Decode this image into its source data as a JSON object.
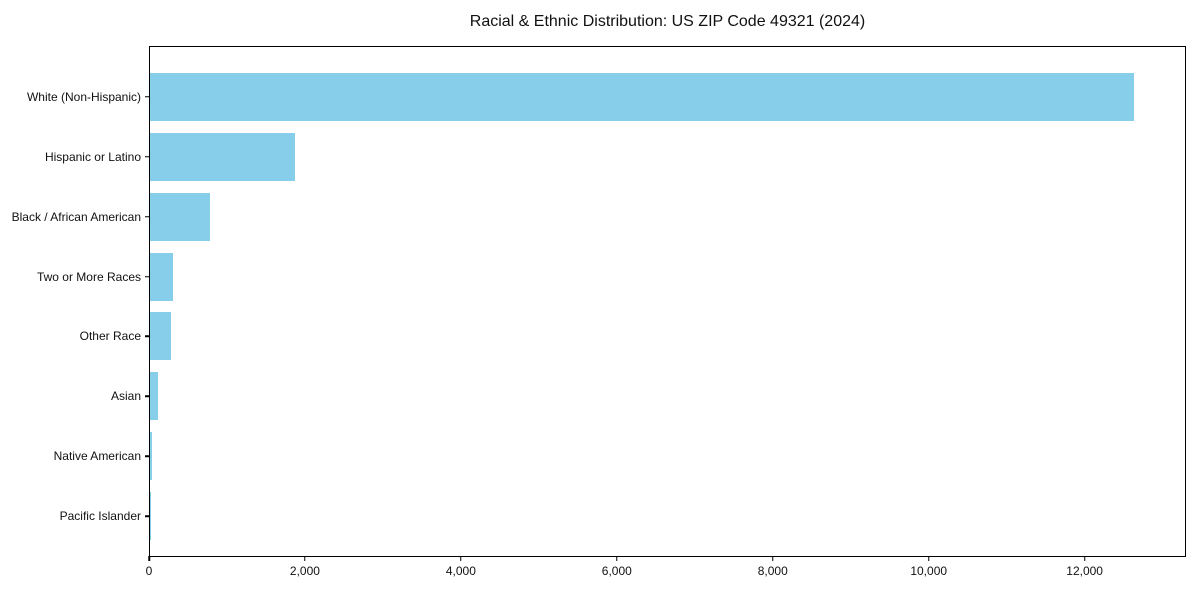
{
  "chart_data": {
    "type": "bar",
    "orientation": "horizontal",
    "title": "Racial & Ethnic Distribution: US ZIP Code 49321 (2024)",
    "categories": [
      "White (Non-Hispanic)",
      "Hispanic or Latino",
      "Black / African American",
      "Two or More Races",
      "Other Race",
      "Asian",
      "Native American",
      "Pacific Islander"
    ],
    "values": [
      12650,
      1860,
      770,
      300,
      270,
      100,
      25,
      5
    ],
    "xlabel": "",
    "ylabel": "",
    "xlim": [
      0,
      13300
    ],
    "x_ticks": [
      0,
      2000,
      4000,
      6000,
      8000,
      10000,
      12000
    ],
    "x_tick_labels": [
      "0",
      "2,000",
      "4,000",
      "6,000",
      "8,000",
      "10,000",
      "12,000"
    ],
    "bar_color": "#87CEEB",
    "grid": false,
    "legend": "none"
  }
}
